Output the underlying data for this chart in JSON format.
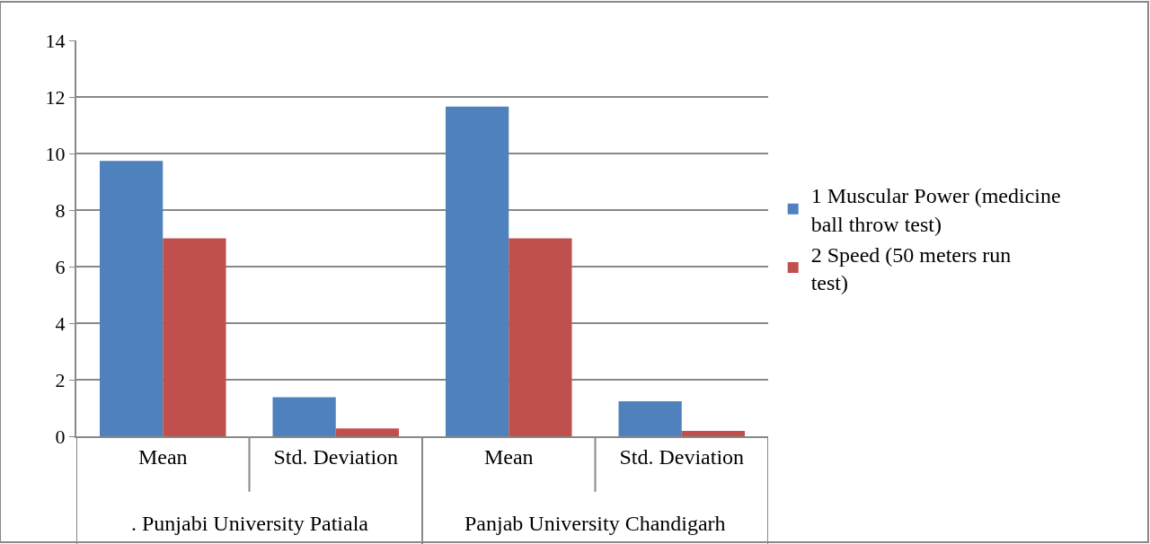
{
  "chart_data": {
    "type": "bar",
    "categories": [
      "Mean",
      "Std. Deviation",
      "Mean",
      "Std. Deviation"
    ],
    "series": [
      {
        "name": "1 Muscular Power (medicine ball throw test)",
        "color": "#4f81bd",
        "values": [
          9.74,
          1.38,
          11.66,
          1.24
        ]
      },
      {
        "name": "2 Speed (50 meters run test)",
        "color": "#c0504d",
        "values": [
          7.0,
          0.28,
          7.0,
          0.19
        ]
      }
    ],
    "annotations": [
      ". Punjabi University Patiala",
      "Panjab University Chandigarh"
    ],
    "ylim": [
      0,
      14
    ],
    "yticks": [
      0,
      2,
      4,
      6,
      8,
      10,
      12,
      14
    ],
    "grid": "y",
    "legend": "right"
  }
}
